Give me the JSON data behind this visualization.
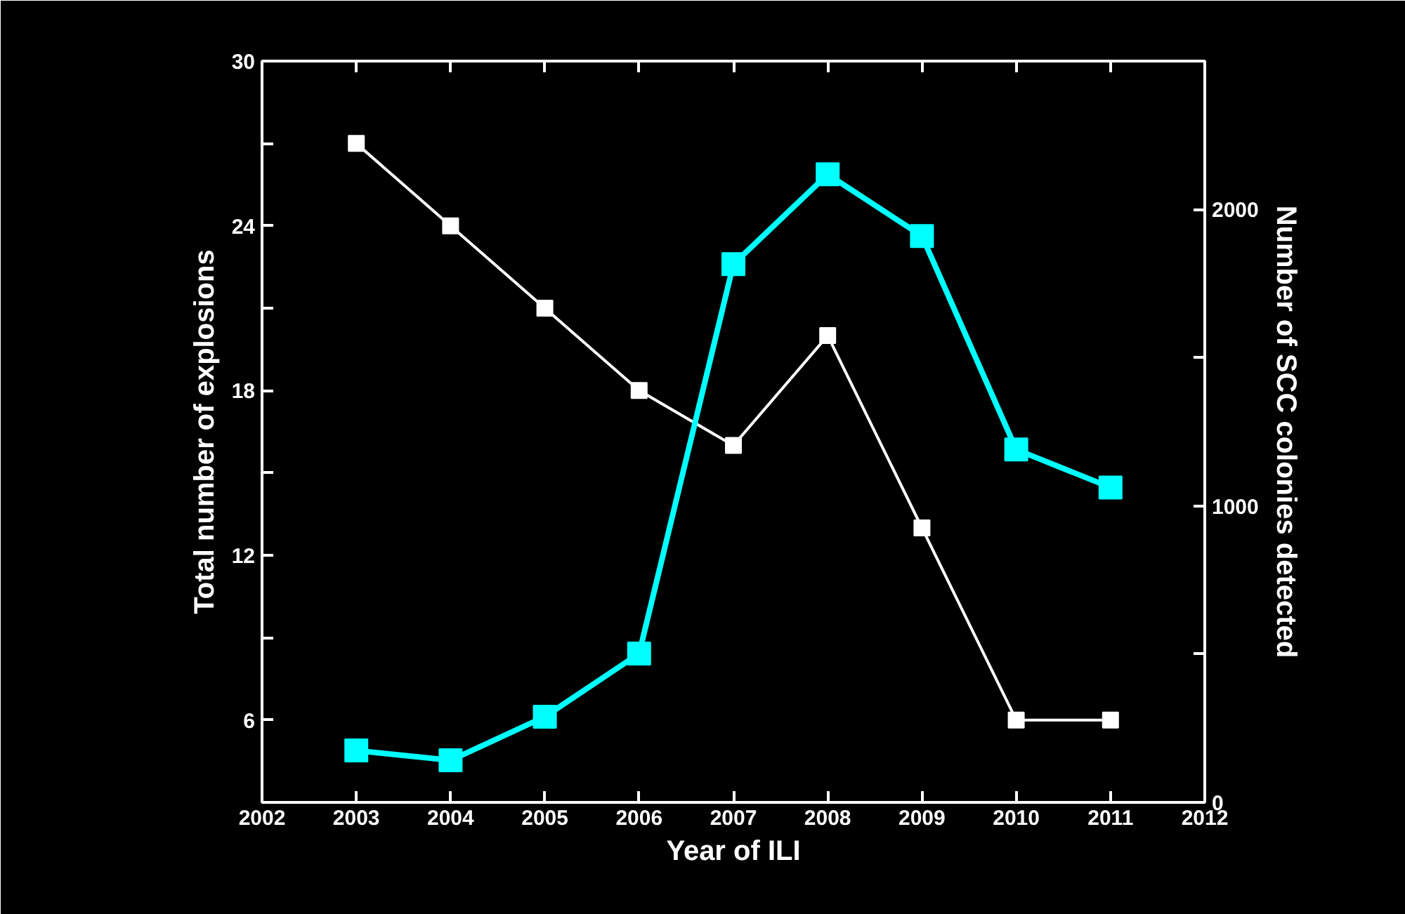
{
  "chart_data": {
    "type": "line",
    "xlabel": "Year of ILI",
    "ylabel": "Total number of explosions",
    "y2label": "Number of SCC colonies detected",
    "x": [
      2003,
      2004,
      2005,
      2006,
      2007,
      2008,
      2009,
      2010,
      2011
    ],
    "series": [
      {
        "color": "#ffffff",
        "values": [
          27,
          24,
          21,
          18,
          16,
          20,
          13,
          6,
          6
        ]
      },
      {
        "color": "#00ffff",
        "axis": "y2",
        "values": [
          175,
          142,
          289,
          502,
          1815,
          2118,
          1910,
          1190,
          1062
        ]
      }
    ],
    "xlim": [
      2002,
      2012
    ],
    "xticks": [
      2002,
      2003,
      2004,
      2005,
      2006,
      2007,
      2008,
      2009,
      2010,
      2011,
      2012
    ],
    "ylim": [
      3,
      30
    ],
    "yticks": [
      6,
      {
        "value": 9,
        "label": null
      },
      12,
      {
        "value": 15,
        "label": null
      },
      18,
      {
        "value": 21,
        "label": null
      },
      24,
      {
        "value": 27,
        "label": null
      },
      30
    ],
    "y2lim": [
      0,
      2500
    ],
    "y2ticks": [
      0,
      {
        "value": 500,
        "label": null
      },
      1000,
      {
        "value": 1500,
        "label": null
      },
      2000
    ],
    "marker": "square",
    "line_style": "solid",
    "grid": false
  }
}
